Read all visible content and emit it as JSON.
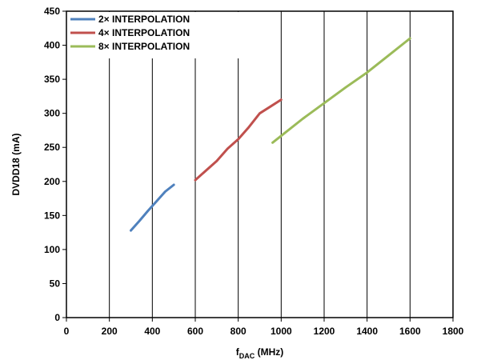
{
  "chart_data": {
    "type": "line",
    "title": "",
    "xlabel_main": "f",
    "xlabel_sub": "DAC",
    "xlabel_unit": " (MHz)",
    "ylabel": "DVDD18 (mA)",
    "xlim": [
      0,
      1800
    ],
    "ylim": [
      0,
      450
    ],
    "x_ticks": [
      0,
      200,
      400,
      600,
      800,
      1000,
      1200,
      1400,
      1600,
      1800
    ],
    "y_ticks": [
      0,
      50,
      100,
      150,
      200,
      250,
      300,
      350,
      400,
      450
    ],
    "x_tick_labels": [
      "0",
      "200",
      "400",
      "600",
      "800",
      "1000",
      "1200",
      "1400",
      "1600",
      "1800"
    ],
    "y_tick_labels": [
      "0",
      "50",
      "100",
      "150",
      "200",
      "250",
      "300",
      "350",
      "400",
      "450"
    ],
    "grid": "vertical",
    "legend_position": "top-left",
    "series": [
      {
        "name": "2× INTERPOLATION",
        "color": "#4F81BD",
        "x": [
          300,
          340,
          380,
          420,
          460,
          500
        ],
        "y": [
          128,
          142,
          157,
          171,
          185,
          195
        ]
      },
      {
        "name": "4× INTERPOLATION",
        "color": "#C0504D",
        "x": [
          600,
          700,
          750,
          800,
          850,
          900,
          950,
          1000
        ],
        "y": [
          202,
          230,
          248,
          262,
          280,
          300,
          310,
          320
        ]
      },
      {
        "name": "8× INTERPOLATION",
        "color": "#9BBB59",
        "x": [
          960,
          1000,
          1100,
          1200,
          1300,
          1400,
          1500,
          1600
        ],
        "y": [
          257,
          267,
          292,
          315,
          338,
          360,
          385,
          410
        ]
      }
    ]
  }
}
